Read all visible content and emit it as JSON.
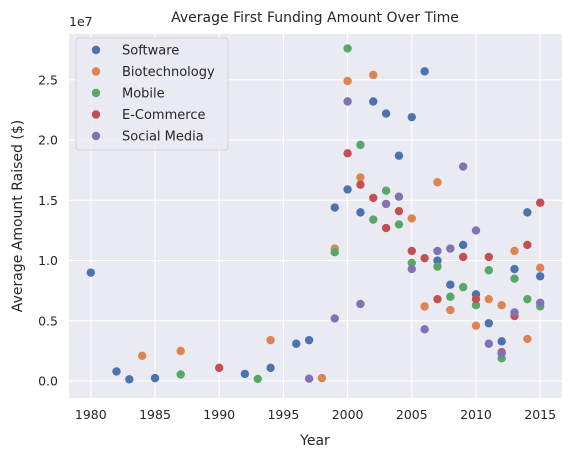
{
  "chart_data": {
    "type": "scatter",
    "title": "Average First Funding Amount Over Time",
    "xlabel": "Year",
    "ylabel": "Average Amount Raised ($)",
    "y_offset_label": "1e7",
    "xlim": [
      1978.3,
      2016.7
    ],
    "ylim": [
      -1400000,
      28800000
    ],
    "x_ticks": [
      1980,
      1985,
      1990,
      1995,
      2000,
      2005,
      2010,
      2015
    ],
    "y_ticks": [
      0,
      5000000,
      10000000,
      15000000,
      20000000,
      25000000
    ],
    "y_tick_labels": [
      "0.0",
      "0.5",
      "1.0",
      "1.5",
      "2.0",
      "2.5"
    ],
    "grid": true,
    "legend_position": "top-left",
    "series": [
      {
        "name": "Software",
        "color": "#4c72b0",
        "points": [
          [
            1980,
            9000000
          ],
          [
            1982,
            800000
          ],
          [
            1983,
            150000
          ],
          [
            1985,
            250000
          ],
          [
            1992,
            600000
          ],
          [
            1994,
            1100000
          ],
          [
            1996,
            3100000
          ],
          [
            1997,
            3400000
          ],
          [
            1999,
            14400000
          ],
          [
            2000,
            15900000
          ],
          [
            2001,
            14000000
          ],
          [
            2002,
            23200000
          ],
          [
            2003,
            22200000
          ],
          [
            2004,
            18700000
          ],
          [
            2005,
            21900000
          ],
          [
            2006,
            25700000
          ],
          [
            2007,
            10000000
          ],
          [
            2008,
            8000000
          ],
          [
            2009,
            11300000
          ],
          [
            2010,
            7200000
          ],
          [
            2011,
            4800000
          ],
          [
            2012,
            3300000
          ],
          [
            2013,
            9300000
          ],
          [
            2014,
            14000000
          ],
          [
            2015,
            8700000
          ]
        ]
      },
      {
        "name": "Biotechnology",
        "color": "#dd8452",
        "points": [
          [
            1984,
            2100000
          ],
          [
            1987,
            2500000
          ],
          [
            1994,
            3400000
          ],
          [
            1998,
            250000
          ],
          [
            1999,
            11000000
          ],
          [
            2000,
            24900000
          ],
          [
            2001,
            16900000
          ],
          [
            2002,
            25400000
          ],
          [
            2005,
            13500000
          ],
          [
            2006,
            6200000
          ],
          [
            2007,
            16500000
          ],
          [
            2008,
            5900000
          ],
          [
            2010,
            4600000
          ],
          [
            2011,
            6800000
          ],
          [
            2012,
            6300000
          ],
          [
            2013,
            10800000
          ],
          [
            2014,
            3500000
          ],
          [
            2015,
            9400000
          ]
        ]
      },
      {
        "name": "Mobile",
        "color": "#55a868",
        "points": [
          [
            1987,
            550000
          ],
          [
            1993,
            180000
          ],
          [
            1999,
            10700000
          ],
          [
            2000,
            27600000
          ],
          [
            2001,
            19600000
          ],
          [
            2002,
            13400000
          ],
          [
            2003,
            15800000
          ],
          [
            2004,
            13000000
          ],
          [
            2005,
            9800000
          ],
          [
            2007,
            9500000
          ],
          [
            2008,
            7000000
          ],
          [
            2009,
            7800000
          ],
          [
            2010,
            6300000
          ],
          [
            2011,
            9200000
          ],
          [
            2012,
            1900000
          ],
          [
            2013,
            8500000
          ],
          [
            2014,
            6800000
          ],
          [
            2015,
            6200000
          ]
        ]
      },
      {
        "name": "E-Commerce",
        "color": "#c44e52",
        "points": [
          [
            1990,
            1100000
          ],
          [
            2000,
            18900000
          ],
          [
            2001,
            16300000
          ],
          [
            2002,
            15200000
          ],
          [
            2003,
            12700000
          ],
          [
            2004,
            14100000
          ],
          [
            2005,
            10800000
          ],
          [
            2006,
            10200000
          ],
          [
            2007,
            6800000
          ],
          [
            2009,
            10300000
          ],
          [
            2010,
            6800000
          ],
          [
            2011,
            10300000
          ],
          [
            2012,
            2400000
          ],
          [
            2013,
            5400000
          ],
          [
            2014,
            11300000
          ],
          [
            2015,
            14800000
          ]
        ]
      },
      {
        "name": "Social Media",
        "color": "#8172b3",
        "points": [
          [
            1997,
            200000
          ],
          [
            1999,
            5200000
          ],
          [
            2000,
            23200000
          ],
          [
            2001,
            6400000
          ],
          [
            2003,
            14700000
          ],
          [
            2004,
            15300000
          ],
          [
            2005,
            9300000
          ],
          [
            2006,
            4300000
          ],
          [
            2007,
            10800000
          ],
          [
            2008,
            11000000
          ],
          [
            2009,
            17800000
          ],
          [
            2010,
            12500000
          ],
          [
            2011,
            3100000
          ],
          [
            2012,
            2300000
          ],
          [
            2013,
            5700000
          ],
          [
            2015,
            6500000
          ]
        ]
      }
    ]
  }
}
